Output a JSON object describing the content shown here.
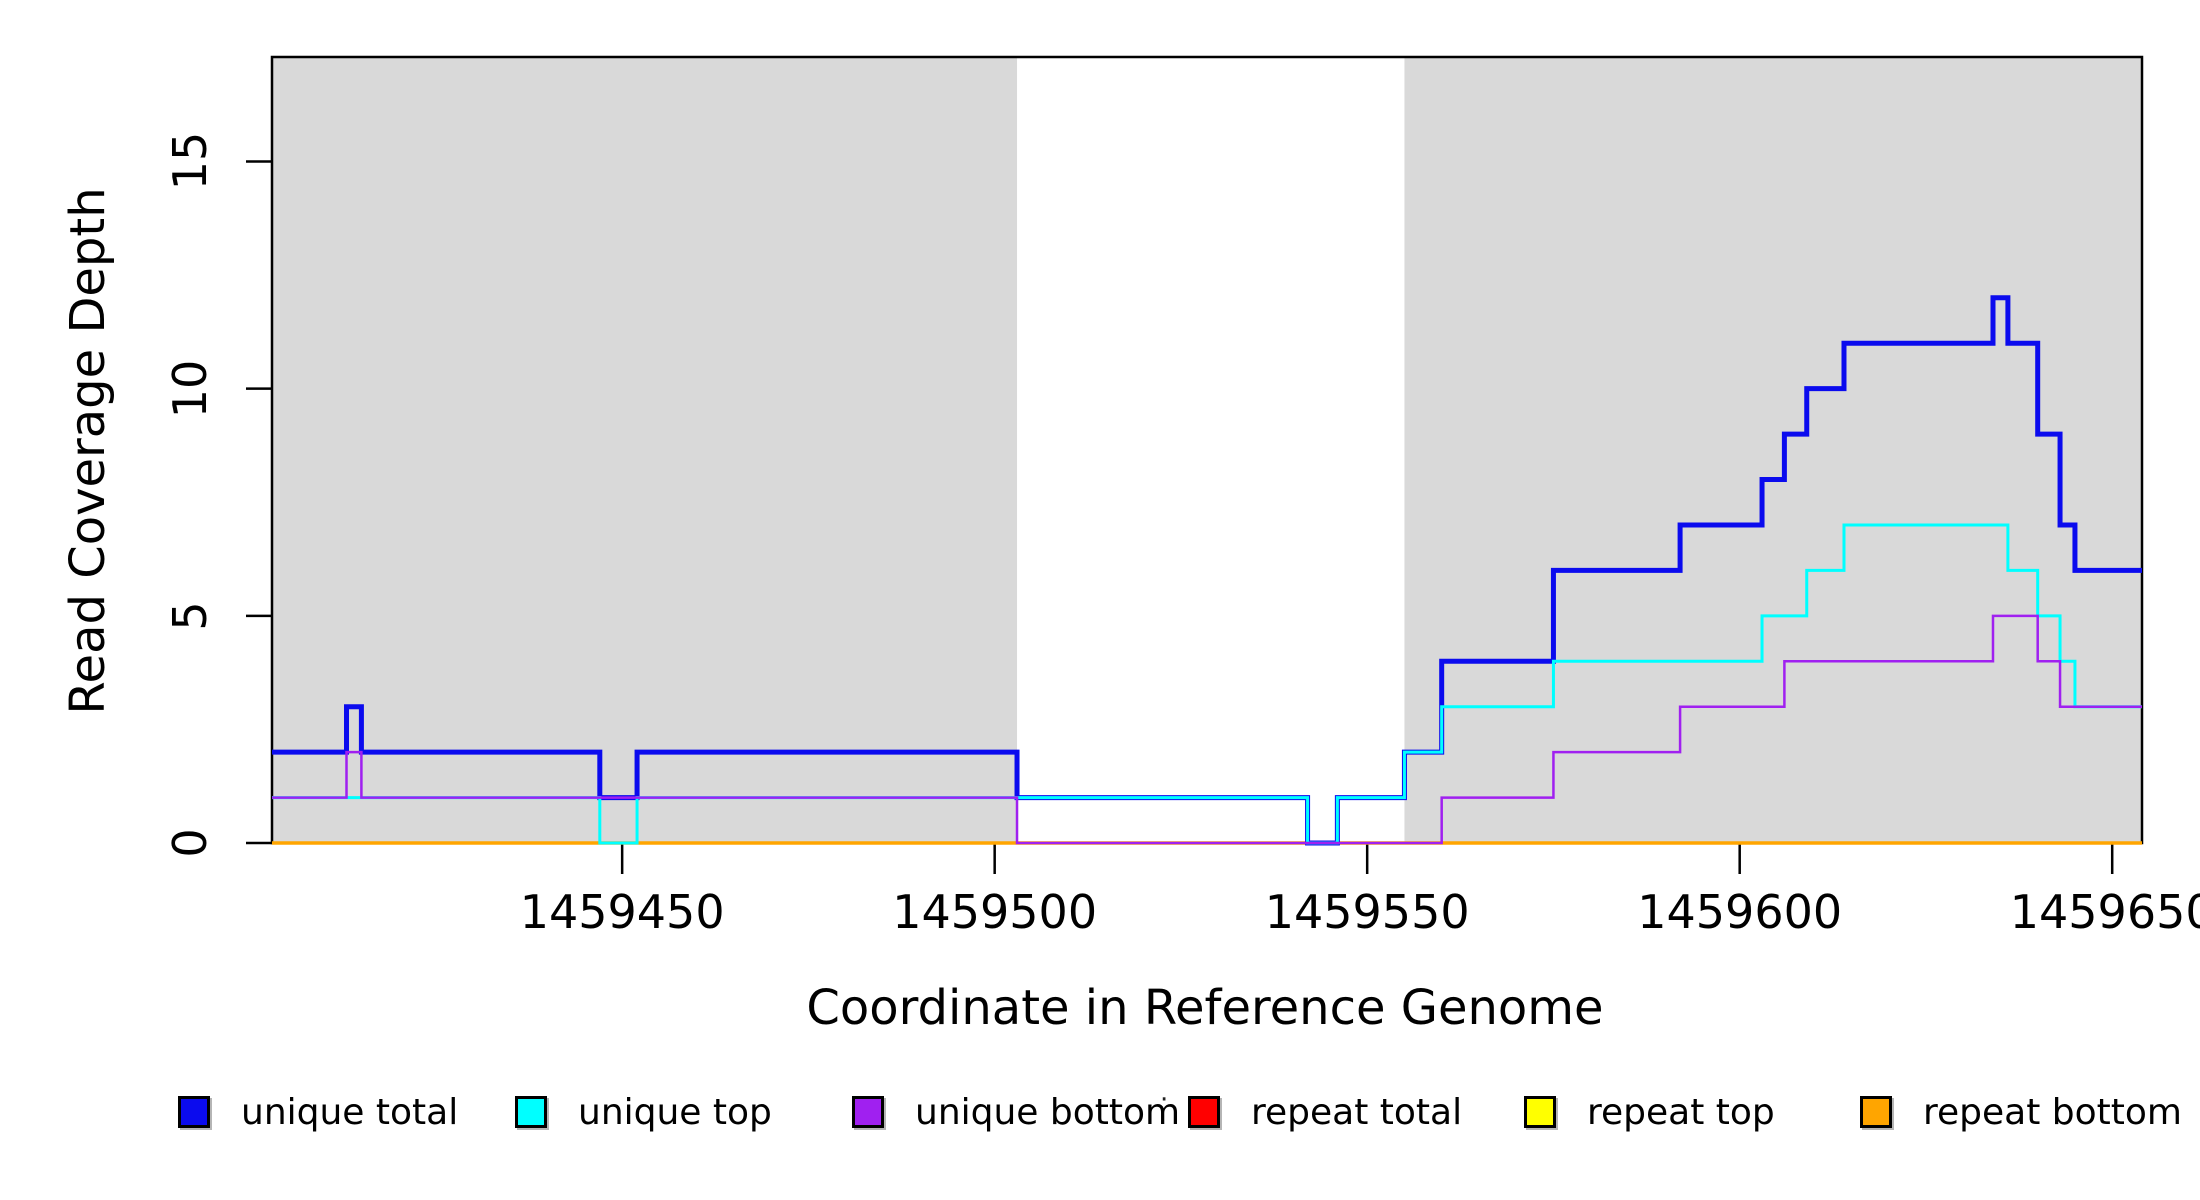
{
  "chart_data": {
    "type": "line",
    "subtype": "step",
    "title": "",
    "xlabel": "Coordinate in Reference Genome",
    "ylabel": "Read Coverage Depth",
    "xlim": [
      1459403,
      1459654
    ],
    "ylim": [
      0,
      17.3
    ],
    "x_ticks": [
      1459450,
      1459500,
      1459550,
      1459600,
      1459650
    ],
    "y_ticks": [
      0,
      5,
      10,
      15
    ],
    "grid": false,
    "legend_position": "bottom",
    "plot_bg": "#ffffff",
    "band_color": "#d9d9d9",
    "axis_color": "#000000",
    "background_bands": [
      {
        "from": 1459403,
        "to": 1459503
      },
      {
        "from": 1459555,
        "to": 1459654
      }
    ],
    "draw_order": [
      3,
      4,
      5,
      0,
      1,
      2
    ],
    "series": [
      {
        "name": "unique total",
        "color": "#0b0bee",
        "line_width": 5,
        "end": 1459654,
        "steps": [
          [
            1459403,
            2
          ],
          [
            1459413,
            3
          ],
          [
            1459415,
            2
          ],
          [
            1459447,
            1
          ],
          [
            1459452,
            2
          ],
          [
            1459503,
            1
          ],
          [
            1459542,
            0
          ],
          [
            1459546,
            1
          ],
          [
            1459555,
            2
          ],
          [
            1459560,
            4
          ],
          [
            1459575,
            6
          ],
          [
            1459592,
            7
          ],
          [
            1459603,
            8
          ],
          [
            1459606,
            9
          ],
          [
            1459609,
            10
          ],
          [
            1459614,
            11
          ],
          [
            1459634,
            12
          ],
          [
            1459636,
            11
          ],
          [
            1459640,
            9
          ],
          [
            1459643,
            7
          ],
          [
            1459645,
            6
          ]
        ]
      },
      {
        "name": "unique top",
        "color": "#00ffff",
        "line_width": 3,
        "end": 1459654,
        "steps": [
          [
            1459403,
            1
          ],
          [
            1459447,
            0
          ],
          [
            1459452,
            1
          ],
          [
            1459542,
            0
          ],
          [
            1459546,
            1
          ],
          [
            1459555,
            2
          ],
          [
            1459560,
            3
          ],
          [
            1459575,
            4
          ],
          [
            1459603,
            5
          ],
          [
            1459609,
            6
          ],
          [
            1459614,
            7
          ],
          [
            1459636,
            6
          ],
          [
            1459640,
            5
          ],
          [
            1459643,
            4
          ],
          [
            1459645,
            3
          ]
        ]
      },
      {
        "name": "unique bottom",
        "color": "#a020f0",
        "line_width": 2.5,
        "end": 1459654,
        "steps": [
          [
            1459403,
            1
          ],
          [
            1459413,
            2
          ],
          [
            1459415,
            1
          ],
          [
            1459503,
            0
          ],
          [
            1459560,
            1
          ],
          [
            1459575,
            2
          ],
          [
            1459592,
            3
          ],
          [
            1459606,
            4
          ],
          [
            1459634,
            5
          ],
          [
            1459640,
            4
          ],
          [
            1459643,
            3
          ]
        ]
      },
      {
        "name": "repeat total",
        "color": "#ff0000",
        "line_width": 3,
        "end": 1459654,
        "steps": [
          [
            1459403,
            0
          ]
        ]
      },
      {
        "name": "repeat top",
        "color": "#ffff00",
        "line_width": 3,
        "end": 1459654,
        "steps": [
          [
            1459403,
            0
          ]
        ]
      },
      {
        "name": "repeat bottom",
        "color": "#ffa500",
        "line_width": 3.5,
        "end": 1459654,
        "steps": [
          [
            1459403,
            0
          ]
        ]
      }
    ]
  },
  "legend": {
    "stray_mark": "·"
  }
}
